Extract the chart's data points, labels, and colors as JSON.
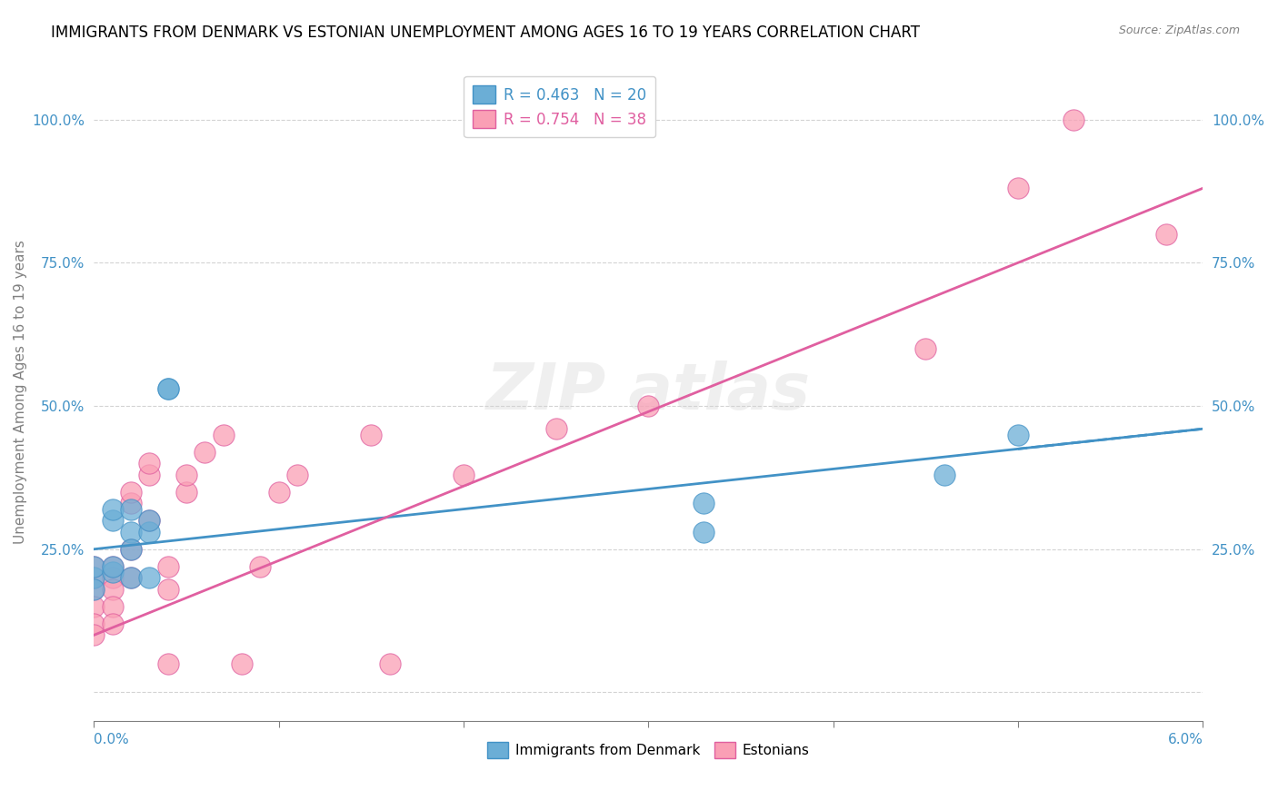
{
  "title": "IMMIGRANTS FROM DENMARK VS ESTONIAN UNEMPLOYMENT AMONG AGES 16 TO 19 YEARS CORRELATION CHART",
  "source": "Source: ZipAtlas.com",
  "ylabel": "Unemployment Among Ages 16 to 19 years",
  "xlim": [
    0.0,
    0.06
  ],
  "ylim": [
    -0.05,
    1.1
  ],
  "legend_r1": "R = 0.463   N = 20",
  "legend_r2": "R = 0.754   N = 38",
  "blue_color": "#6baed6",
  "pink_color": "#fa9fb5",
  "blue_line_color": "#4292c6",
  "pink_line_color": "#e05fa0",
  "denmark_x": [
    0.0,
    0.0,
    0.0,
    0.001,
    0.001,
    0.001,
    0.001,
    0.002,
    0.002,
    0.002,
    0.002,
    0.003,
    0.003,
    0.003,
    0.004,
    0.004,
    0.033,
    0.033,
    0.046,
    0.05
  ],
  "denmark_y": [
    0.2,
    0.22,
    0.18,
    0.21,
    0.3,
    0.32,
    0.22,
    0.28,
    0.32,
    0.2,
    0.25,
    0.28,
    0.3,
    0.2,
    0.53,
    0.53,
    0.28,
    0.33,
    0.38,
    0.45
  ],
  "estonian_x": [
    0.0,
    0.0,
    0.0,
    0.0,
    0.0,
    0.0,
    0.001,
    0.001,
    0.001,
    0.001,
    0.001,
    0.002,
    0.002,
    0.002,
    0.002,
    0.003,
    0.003,
    0.003,
    0.004,
    0.004,
    0.004,
    0.005,
    0.005,
    0.006,
    0.007,
    0.008,
    0.009,
    0.01,
    0.011,
    0.015,
    0.016,
    0.02,
    0.025,
    0.03,
    0.045,
    0.05,
    0.053,
    0.058
  ],
  "estonian_y": [
    0.18,
    0.2,
    0.22,
    0.15,
    0.12,
    0.1,
    0.2,
    0.22,
    0.18,
    0.15,
    0.12,
    0.33,
    0.35,
    0.25,
    0.2,
    0.38,
    0.4,
    0.3,
    0.22,
    0.18,
    0.05,
    0.35,
    0.38,
    0.42,
    0.45,
    0.05,
    0.22,
    0.35,
    0.38,
    0.45,
    0.05,
    0.38,
    0.46,
    0.5,
    0.6,
    0.88,
    1.0,
    0.8
  ],
  "dk_trend_y0": 0.25,
  "dk_trend_y1": 0.46,
  "es_trend_y0": 0.1,
  "es_trend_y1": 0.88,
  "y_tick_vals": [
    0.0,
    0.25,
    0.5,
    0.75,
    1.0
  ],
  "y_tick_labels": [
    "",
    "25.0%",
    "50.0%",
    "75.0%",
    "100.0%"
  ]
}
